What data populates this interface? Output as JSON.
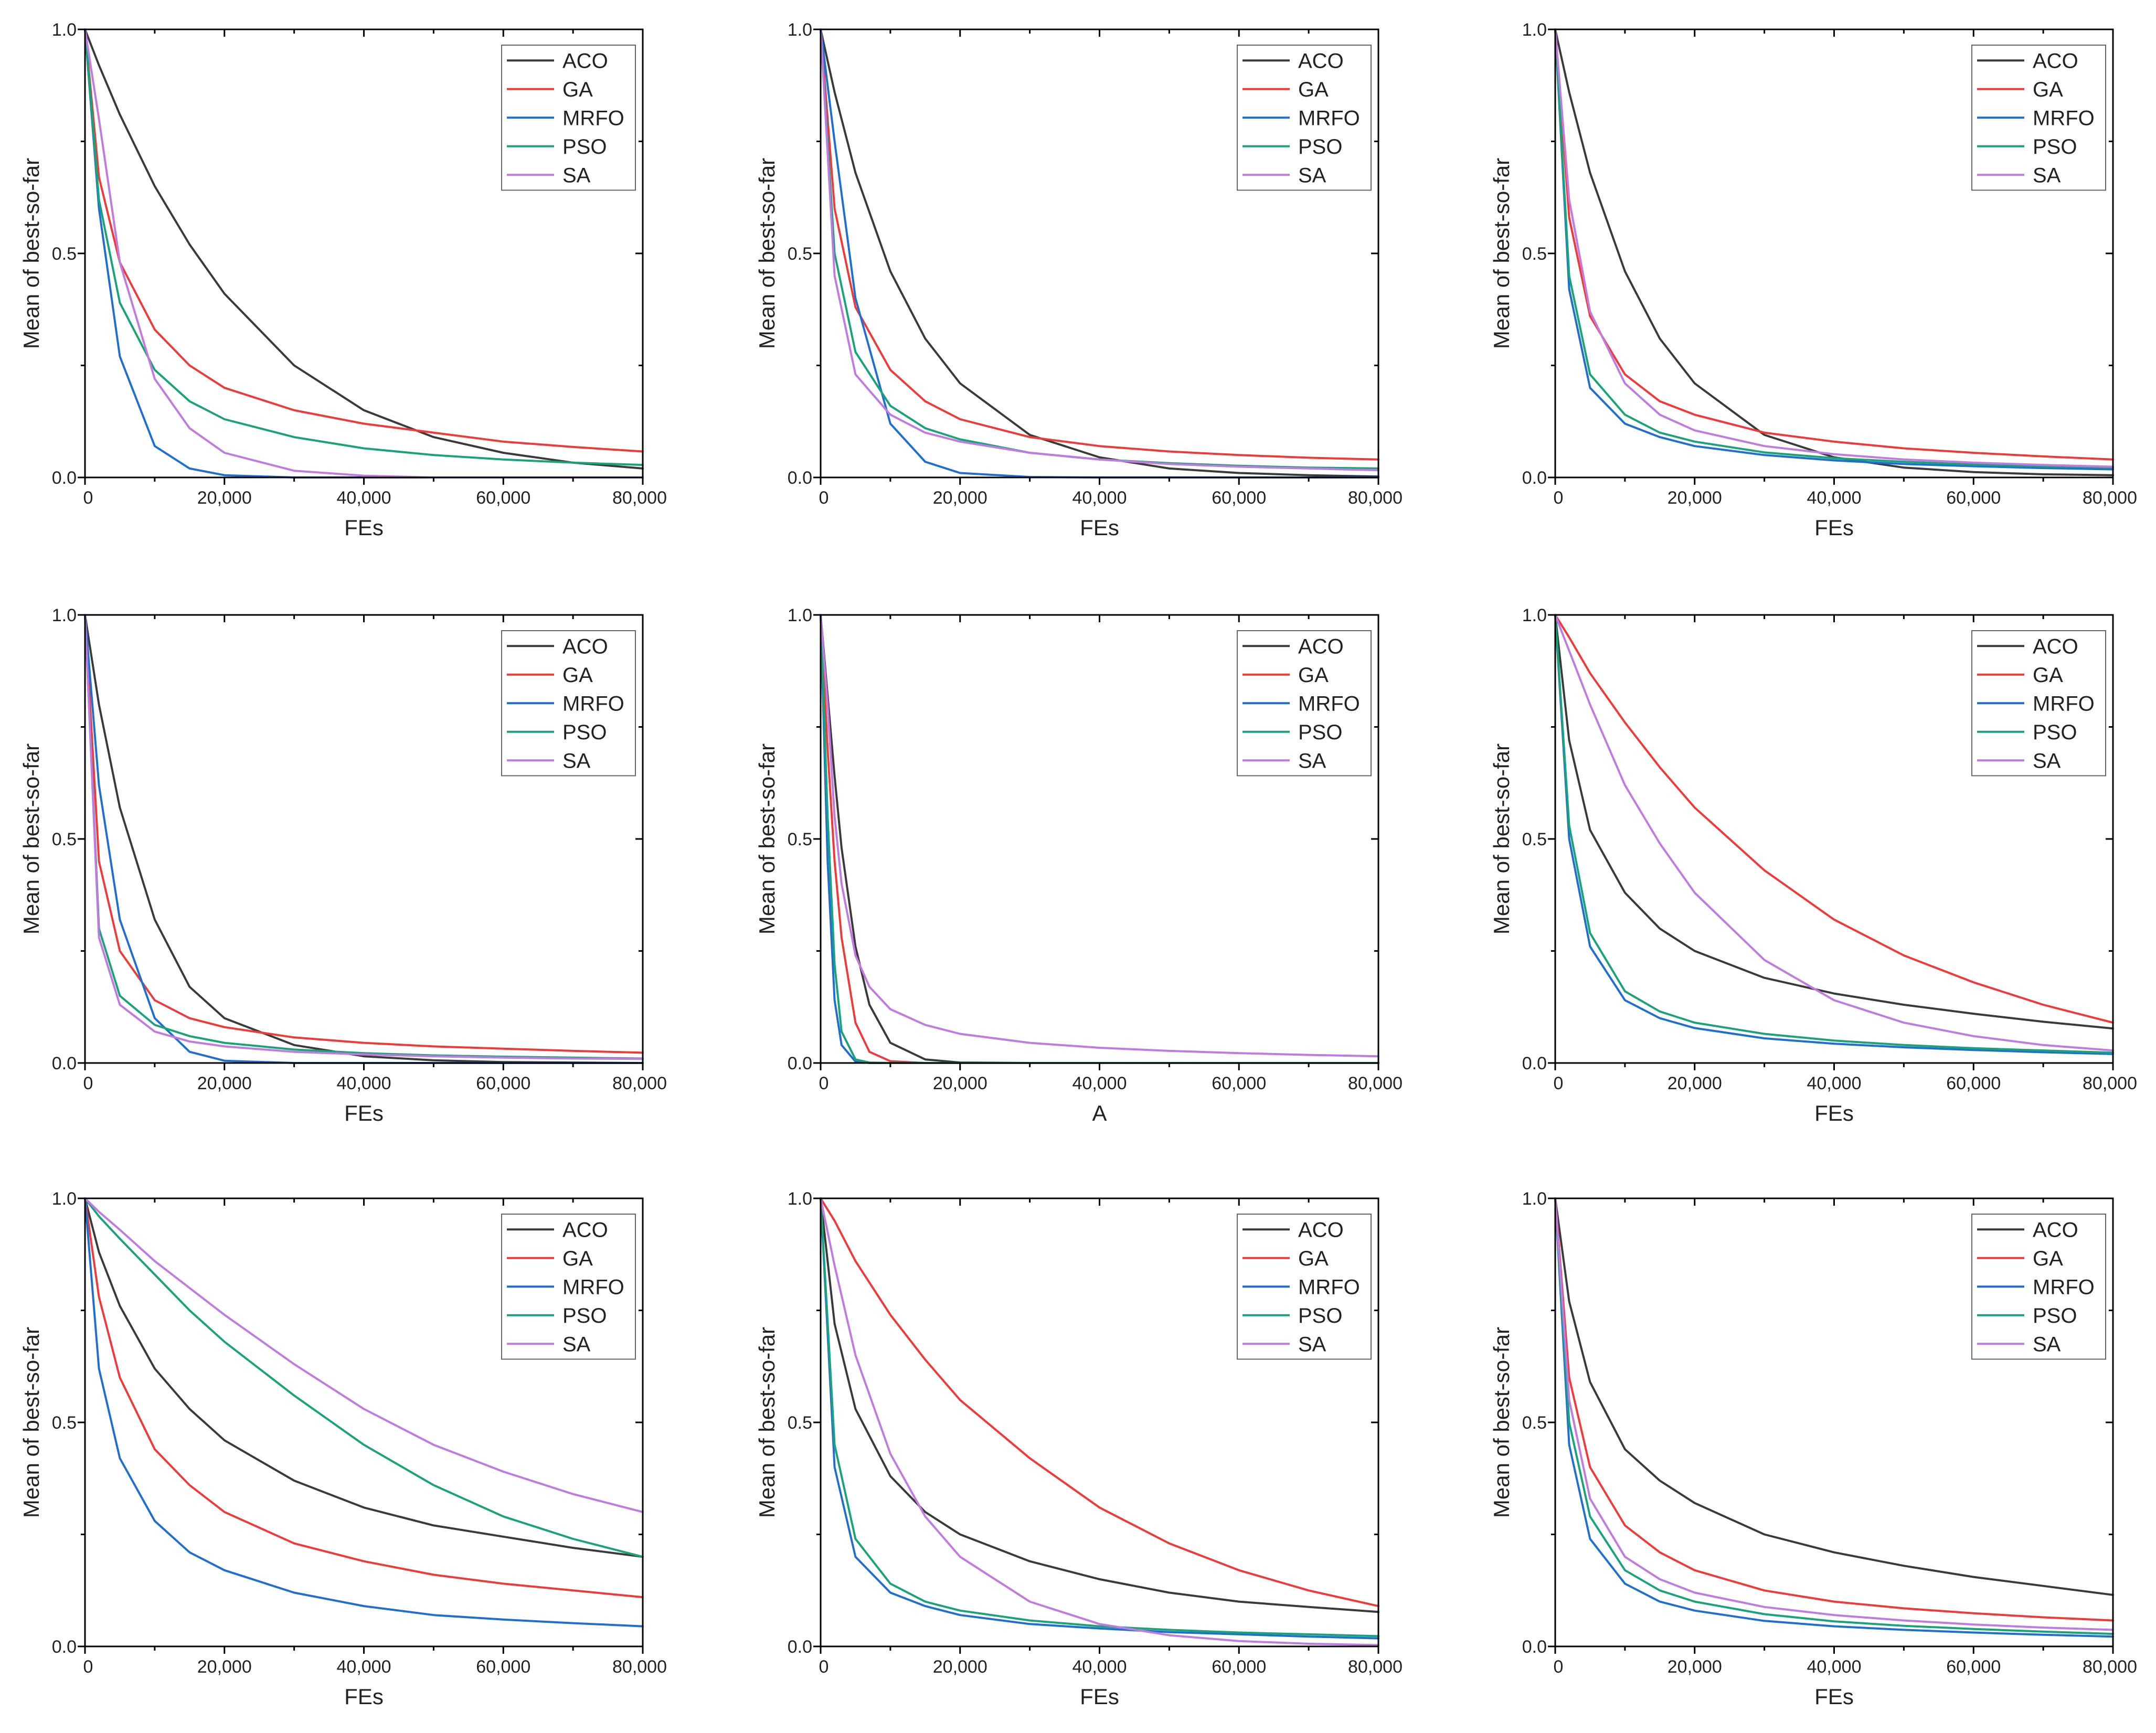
{
  "figure": {
    "series_colors": {
      "ACO": "#3a3a3a",
      "GA": "#f03a3a",
      "MRFO": "#1f6fd0",
      "PSO": "#1aa37a",
      "SA": "#c07be0"
    },
    "legend_placement": "top-right"
  },
  "chart_data": [
    {
      "type": "line",
      "xlabel": "FEs",
      "ylabel": "Mean of best-so-far",
      "xlim": [
        0,
        80000
      ],
      "ylim": [
        0,
        1
      ],
      "x_ticks": [
        "0",
        "20,000",
        "40,000",
        "60,000",
        "80,000"
      ],
      "y_ticks": [
        "0.0",
        "0.5",
        "1.0"
      ],
      "x": [
        0,
        2000,
        5000,
        10000,
        15000,
        20000,
        30000,
        40000,
        50000,
        60000,
        70000,
        80000
      ],
      "series": [
        {
          "name": "ACO",
          "values": [
            1.0,
            0.92,
            0.81,
            0.65,
            0.52,
            0.41,
            0.25,
            0.15,
            0.09,
            0.055,
            0.033,
            0.02
          ]
        },
        {
          "name": "GA",
          "values": [
            1.0,
            0.67,
            0.48,
            0.33,
            0.25,
            0.2,
            0.15,
            0.12,
            0.1,
            0.08,
            0.068,
            0.058
          ]
        },
        {
          "name": "MRFO",
          "values": [
            1.0,
            0.6,
            0.27,
            0.07,
            0.02,
            0.005,
            0.0,
            0.0,
            0.0,
            0.0,
            0.0,
            0.0
          ]
        },
        {
          "name": "PSO",
          "values": [
            1.0,
            0.62,
            0.39,
            0.24,
            0.17,
            0.13,
            0.09,
            0.065,
            0.05,
            0.04,
            0.033,
            0.028
          ]
        },
        {
          "name": "SA",
          "values": [
            1.0,
            0.8,
            0.48,
            0.22,
            0.11,
            0.055,
            0.015,
            0.004,
            0.0,
            0.0,
            0.0,
            0.0
          ]
        }
      ]
    },
    {
      "type": "line",
      "xlabel": "FEs",
      "ylabel": "Mean of best-so-far",
      "xlim": [
        0,
        80000
      ],
      "ylim": [
        0,
        1
      ],
      "x_ticks": [
        "0",
        "20,000",
        "40,000",
        "60,000",
        "80,000"
      ],
      "y_ticks": [
        "0.0",
        "0.5",
        "1.0"
      ],
      "x": [
        0,
        2000,
        5000,
        10000,
        15000,
        20000,
        30000,
        40000,
        50000,
        60000,
        70000,
        80000
      ],
      "series": [
        {
          "name": "ACO",
          "values": [
            1.0,
            0.86,
            0.68,
            0.46,
            0.31,
            0.21,
            0.095,
            0.045,
            0.02,
            0.01,
            0.005,
            0.002
          ]
        },
        {
          "name": "GA",
          "values": [
            1.0,
            0.6,
            0.38,
            0.24,
            0.17,
            0.13,
            0.09,
            0.07,
            0.058,
            0.05,
            0.044,
            0.04
          ]
        },
        {
          "name": "MRFO",
          "values": [
            1.0,
            0.75,
            0.4,
            0.12,
            0.035,
            0.01,
            0.001,
            0.0,
            0.0,
            0.0,
            0.0,
            0.0
          ]
        },
        {
          "name": "PSO",
          "values": [
            1.0,
            0.5,
            0.28,
            0.16,
            0.11,
            0.085,
            0.055,
            0.04,
            0.032,
            0.026,
            0.022,
            0.02
          ]
        },
        {
          "name": "SA",
          "values": [
            1.0,
            0.45,
            0.23,
            0.14,
            0.1,
            0.08,
            0.055,
            0.04,
            0.03,
            0.024,
            0.02,
            0.016
          ]
        }
      ]
    },
    {
      "type": "line",
      "xlabel": "FEs",
      "ylabel": "Mean of best-so-far",
      "xlim": [
        0,
        80000
      ],
      "ylim": [
        0,
        1
      ],
      "x_ticks": [
        "0",
        "20,000",
        "40,000",
        "60,000",
        "80,000"
      ],
      "y_ticks": [
        "0.0",
        "0.5",
        "1.0"
      ],
      "x": [
        0,
        2000,
        5000,
        10000,
        15000,
        20000,
        30000,
        40000,
        50000,
        60000,
        70000,
        80000
      ],
      "series": [
        {
          "name": "ACO",
          "values": [
            1.0,
            0.86,
            0.68,
            0.46,
            0.31,
            0.21,
            0.095,
            0.045,
            0.022,
            0.012,
            0.007,
            0.005
          ]
        },
        {
          "name": "GA",
          "values": [
            1.0,
            0.58,
            0.36,
            0.23,
            0.17,
            0.14,
            0.1,
            0.08,
            0.065,
            0.055,
            0.047,
            0.04
          ]
        },
        {
          "name": "MRFO",
          "values": [
            1.0,
            0.42,
            0.2,
            0.12,
            0.09,
            0.07,
            0.05,
            0.038,
            0.03,
            0.025,
            0.021,
            0.018
          ]
        },
        {
          "name": "PSO",
          "values": [
            1.0,
            0.45,
            0.23,
            0.14,
            0.1,
            0.08,
            0.056,
            0.043,
            0.035,
            0.029,
            0.025,
            0.022
          ]
        },
        {
          "name": "SA",
          "values": [
            1.0,
            0.62,
            0.37,
            0.21,
            0.14,
            0.105,
            0.07,
            0.052,
            0.04,
            0.033,
            0.028,
            0.024
          ]
        }
      ]
    },
    {
      "type": "line",
      "xlabel": "FEs",
      "ylabel": "Mean of best-so-far",
      "xlim": [
        0,
        80000
      ],
      "ylim": [
        0,
        1
      ],
      "x_ticks": [
        "0",
        "20,000",
        "40,000",
        "60,000",
        "80,000"
      ],
      "y_ticks": [
        "0.0",
        "0.5",
        "1.0"
      ],
      "x": [
        0,
        2000,
        5000,
        10000,
        15000,
        20000,
        30000,
        40000,
        50000,
        60000,
        70000,
        80000
      ],
      "series": [
        {
          "name": "ACO",
          "values": [
            1.0,
            0.8,
            0.57,
            0.32,
            0.17,
            0.1,
            0.04,
            0.015,
            0.006,
            0.002,
            0.001,
            0.0
          ]
        },
        {
          "name": "GA",
          "values": [
            1.0,
            0.45,
            0.25,
            0.14,
            0.1,
            0.08,
            0.057,
            0.045,
            0.037,
            0.032,
            0.027,
            0.023
          ]
        },
        {
          "name": "MRFO",
          "values": [
            1.0,
            0.62,
            0.32,
            0.1,
            0.025,
            0.005,
            0.0,
            0.0,
            0.0,
            0.0,
            0.0,
            0.0
          ]
        },
        {
          "name": "PSO",
          "values": [
            1.0,
            0.3,
            0.15,
            0.085,
            0.06,
            0.045,
            0.03,
            0.022,
            0.017,
            0.014,
            0.012,
            0.01
          ]
        },
        {
          "name": "SA",
          "values": [
            1.0,
            0.28,
            0.13,
            0.07,
            0.048,
            0.037,
            0.025,
            0.019,
            0.015,
            0.012,
            0.01,
            0.009
          ]
        }
      ]
    },
    {
      "type": "line",
      "xlabel": "A",
      "ylabel": "Mean of best-so-far",
      "xlim": [
        0,
        80000
      ],
      "ylim": [
        0,
        1
      ],
      "x_ticks": [
        "0",
        "20,000",
        "40,000",
        "60,000",
        "80,000"
      ],
      "y_ticks": [
        "0.0",
        "0.5",
        "1.0"
      ],
      "x": [
        0,
        1000,
        2000,
        3000,
        5000,
        7000,
        10000,
        15000,
        20000,
        30000,
        40000,
        50000,
        60000,
        70000,
        80000
      ],
      "series": [
        {
          "name": "ACO",
          "values": [
            1.0,
            0.82,
            0.64,
            0.48,
            0.26,
            0.13,
            0.045,
            0.008,
            0.001,
            0.0,
            0.0,
            0.0,
            0.0,
            0.0,
            0.0
          ]
        },
        {
          "name": "GA",
          "values": [
            1.0,
            0.7,
            0.45,
            0.28,
            0.09,
            0.025,
            0.004,
            0.0,
            0.0,
            0.0,
            0.0,
            0.0,
            0.0,
            0.0,
            0.0
          ]
        },
        {
          "name": "MRFO",
          "values": [
            1.0,
            0.45,
            0.14,
            0.04,
            0.003,
            0.0,
            0.0,
            0.0,
            0.0,
            0.0,
            0.0,
            0.0,
            0.0,
            0.0,
            0.0
          ]
        },
        {
          "name": "PSO",
          "values": [
            1.0,
            0.55,
            0.22,
            0.07,
            0.008,
            0.001,
            0.0,
            0.0,
            0.0,
            0.0,
            0.0,
            0.0,
            0.0,
            0.0,
            0.0
          ]
        },
        {
          "name": "SA",
          "values": [
            1.0,
            0.8,
            0.55,
            0.4,
            0.24,
            0.17,
            0.12,
            0.085,
            0.065,
            0.045,
            0.034,
            0.027,
            0.022,
            0.018,
            0.015
          ]
        }
      ]
    },
    {
      "type": "line",
      "xlabel": "FEs",
      "ylabel": "Mean of best-so-far",
      "xlim": [
        0,
        80000
      ],
      "ylim": [
        0,
        1
      ],
      "x_ticks": [
        "0",
        "20,000",
        "40,000",
        "60,000",
        "80,000"
      ],
      "y_ticks": [
        "0.0",
        "0.5",
        "1.0"
      ],
      "x": [
        0,
        2000,
        5000,
        10000,
        15000,
        20000,
        30000,
        40000,
        50000,
        60000,
        70000,
        80000
      ],
      "series": [
        {
          "name": "ACO",
          "values": [
            1.0,
            0.72,
            0.52,
            0.38,
            0.3,
            0.25,
            0.19,
            0.155,
            0.13,
            0.11,
            0.092,
            0.077
          ]
        },
        {
          "name": "GA",
          "values": [
            1.0,
            0.95,
            0.87,
            0.76,
            0.66,
            0.57,
            0.43,
            0.32,
            0.24,
            0.18,
            0.13,
            0.09
          ]
        },
        {
          "name": "MRFO",
          "values": [
            1.0,
            0.5,
            0.26,
            0.14,
            0.1,
            0.078,
            0.055,
            0.043,
            0.035,
            0.029,
            0.024,
            0.02
          ]
        },
        {
          "name": "PSO",
          "values": [
            1.0,
            0.53,
            0.29,
            0.16,
            0.115,
            0.09,
            0.065,
            0.05,
            0.04,
            0.033,
            0.028,
            0.023
          ]
        },
        {
          "name": "SA",
          "values": [
            1.0,
            0.92,
            0.8,
            0.62,
            0.49,
            0.38,
            0.23,
            0.14,
            0.09,
            0.06,
            0.04,
            0.028
          ]
        }
      ]
    },
    {
      "type": "line",
      "xlabel": "FEs",
      "ylabel": "Mean of best-so-far",
      "xlim": [
        0,
        80000
      ],
      "ylim": [
        0,
        1
      ],
      "x_ticks": [
        "0",
        "20,000",
        "40,000",
        "60,000",
        "80,000"
      ],
      "y_ticks": [
        "0.0",
        "0.5",
        "1.0"
      ],
      "x": [
        0,
        2000,
        5000,
        10000,
        15000,
        20000,
        30000,
        40000,
        50000,
        60000,
        70000,
        80000
      ],
      "series": [
        {
          "name": "ACO",
          "values": [
            1.0,
            0.88,
            0.76,
            0.62,
            0.53,
            0.46,
            0.37,
            0.31,
            0.27,
            0.245,
            0.22,
            0.2
          ]
        },
        {
          "name": "GA",
          "values": [
            1.0,
            0.78,
            0.6,
            0.44,
            0.36,
            0.3,
            0.23,
            0.19,
            0.16,
            0.14,
            0.125,
            0.11
          ]
        },
        {
          "name": "MRFO",
          "values": [
            1.0,
            0.62,
            0.42,
            0.28,
            0.21,
            0.17,
            0.12,
            0.09,
            0.07,
            0.06,
            0.052,
            0.045
          ]
        },
        {
          "name": "PSO",
          "values": [
            1.0,
            0.96,
            0.91,
            0.83,
            0.75,
            0.68,
            0.56,
            0.45,
            0.36,
            0.29,
            0.24,
            0.2
          ]
        },
        {
          "name": "SA",
          "values": [
            1.0,
            0.97,
            0.93,
            0.86,
            0.8,
            0.74,
            0.63,
            0.53,
            0.45,
            0.39,
            0.34,
            0.3
          ]
        }
      ]
    },
    {
      "type": "line",
      "xlabel": "FEs",
      "ylabel": "Mean of best-so-far",
      "xlim": [
        0,
        80000
      ],
      "ylim": [
        0,
        1
      ],
      "x_ticks": [
        "0",
        "20,000",
        "40,000",
        "60,000",
        "80,000"
      ],
      "y_ticks": [
        "0.0",
        "0.5",
        "1.0"
      ],
      "x": [
        0,
        2000,
        5000,
        10000,
        15000,
        20000,
        30000,
        40000,
        50000,
        60000,
        70000,
        80000
      ],
      "series": [
        {
          "name": "ACO",
          "values": [
            1.0,
            0.72,
            0.53,
            0.38,
            0.3,
            0.25,
            0.19,
            0.15,
            0.12,
            0.1,
            0.088,
            0.077
          ]
        },
        {
          "name": "GA",
          "values": [
            1.0,
            0.95,
            0.86,
            0.74,
            0.64,
            0.55,
            0.42,
            0.31,
            0.23,
            0.17,
            0.125,
            0.09
          ]
        },
        {
          "name": "MRFO",
          "values": [
            1.0,
            0.4,
            0.2,
            0.12,
            0.09,
            0.07,
            0.05,
            0.04,
            0.032,
            0.027,
            0.022,
            0.018
          ]
        },
        {
          "name": "PSO",
          "values": [
            1.0,
            0.45,
            0.24,
            0.14,
            0.1,
            0.08,
            0.058,
            0.045,
            0.037,
            0.031,
            0.027,
            0.023
          ]
        },
        {
          "name": "SA",
          "values": [
            1.0,
            0.85,
            0.65,
            0.43,
            0.29,
            0.2,
            0.1,
            0.05,
            0.025,
            0.012,
            0.006,
            0.003
          ]
        }
      ]
    },
    {
      "type": "line",
      "xlabel": "FEs",
      "ylabel": "Mean of best-so-far",
      "xlim": [
        0,
        80000
      ],
      "ylim": [
        0,
        1
      ],
      "x_ticks": [
        "0",
        "20,000",
        "40,000",
        "60,000",
        "80,000"
      ],
      "y_ticks": [
        "0.0",
        "0.5",
        "1.0"
      ],
      "x": [
        0,
        2000,
        5000,
        10000,
        15000,
        20000,
        30000,
        40000,
        50000,
        60000,
        70000,
        80000
      ],
      "series": [
        {
          "name": "ACO",
          "values": [
            1.0,
            0.77,
            0.59,
            0.44,
            0.37,
            0.32,
            0.25,
            0.21,
            0.18,
            0.155,
            0.135,
            0.115
          ]
        },
        {
          "name": "GA",
          "values": [
            1.0,
            0.6,
            0.4,
            0.27,
            0.21,
            0.17,
            0.125,
            0.1,
            0.085,
            0.074,
            0.065,
            0.058
          ]
        },
        {
          "name": "MRFO",
          "values": [
            1.0,
            0.45,
            0.24,
            0.14,
            0.1,
            0.08,
            0.057,
            0.045,
            0.037,
            0.031,
            0.026,
            0.022
          ]
        },
        {
          "name": "PSO",
          "values": [
            1.0,
            0.5,
            0.29,
            0.17,
            0.125,
            0.1,
            0.072,
            0.056,
            0.046,
            0.039,
            0.033,
            0.028
          ]
        },
        {
          "name": "SA",
          "values": [
            1.0,
            0.55,
            0.33,
            0.2,
            0.15,
            0.12,
            0.088,
            0.07,
            0.058,
            0.049,
            0.042,
            0.037
          ]
        }
      ]
    }
  ]
}
